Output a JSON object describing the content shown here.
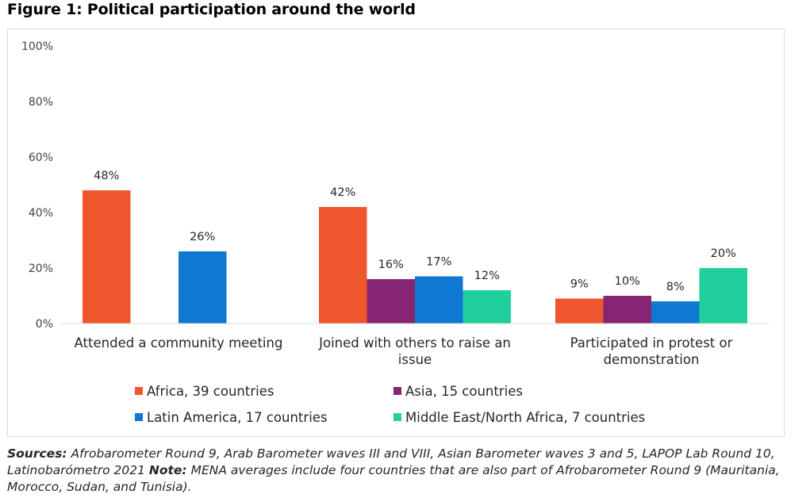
{
  "figure": {
    "title": "Figure 1: Political participation around the world"
  },
  "chart_data": {
    "type": "bar",
    "categories": [
      [
        "Attended a community meeting"
      ],
      [
        "Joined with others to raise an",
        "issue"
      ],
      [
        "Participated in protest or",
        "demonstration"
      ]
    ],
    "series": [
      {
        "name": "Africa, 39 countries",
        "color": "#f0562d",
        "values": [
          48,
          42,
          9
        ]
      },
      {
        "name": "Asia, 15 countries",
        "color": "#862572",
        "values": [
          null,
          16,
          10
        ]
      },
      {
        "name": "Latin America, 17 countries",
        "color": "#0e78d2",
        "values": [
          26,
          17,
          8
        ]
      },
      {
        "name": "Middle East/North Africa, 7 countries",
        "color": "#21cf9c",
        "values": [
          null,
          12,
          20
        ]
      }
    ],
    "ylim": [
      0,
      100
    ],
    "yticks": [
      0,
      20,
      40,
      60,
      80,
      100
    ],
    "value_suffix": "%",
    "grid": false,
    "legend_position": "bottom"
  },
  "note": {
    "sources_label": "Sources:",
    "sources_text": " Afrobarometer Round 9, Arab Barometer waves III and VIII, Asian Barometer waves 3 and 5, LAPOP Lab Round 10, Latinobarómetro 2021 ",
    "note_label": "Note:",
    "note_text": " MENA averages include four countries that are also part of Afrobarometer Round 9 (Mauritania, Morocco, Sudan, and Tunisia)."
  }
}
